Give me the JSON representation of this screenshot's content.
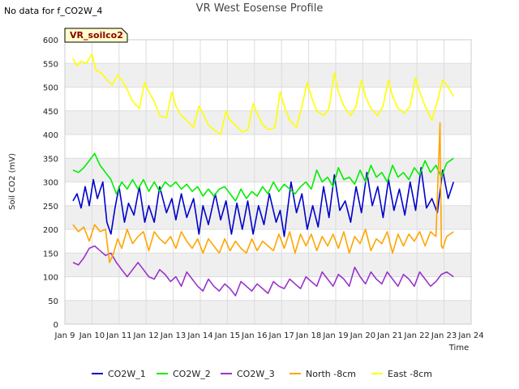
{
  "header": {
    "nodata": "No data for f_CO2W_4",
    "title": "VR West Eosense Profile"
  },
  "chart_data": {
    "type": "line",
    "title": "VR West Eosense Profile",
    "site_label": "VR_soilco2",
    "xlabel": "Time",
    "ylabel": "Soil CO2 (mV)",
    "xlim": [
      9,
      24
    ],
    "ylim": [
      0,
      600
    ],
    "x_ticks": [
      9,
      10,
      11,
      12,
      13,
      14,
      15,
      16,
      17,
      18,
      19,
      20,
      21,
      22,
      23,
      24
    ],
    "x_tick_labels": [
      "Jan 9",
      "Jan 10",
      "Jan 11",
      "Jan 12",
      "Jan 13",
      "Jan 14",
      "Jan 15",
      "Jan 16",
      "Jan 17",
      "Jan 18",
      "Jan 19",
      "Jan 20",
      "Jan 21",
      "Jan 22",
      "Jan 23",
      "Jan 24"
    ],
    "y_ticks": [
      0,
      50,
      100,
      150,
      200,
      250,
      300,
      350,
      400,
      450,
      500,
      550,
      600
    ],
    "grid": true,
    "legend_position": "bottom",
    "series": [
      {
        "name": "CO2W_1",
        "color": "#0000cc",
        "x": [
          9.3,
          9.45,
          9.6,
          9.75,
          9.9,
          10.05,
          10.2,
          10.4,
          10.55,
          10.7,
          10.85,
          11.0,
          11.2,
          11.35,
          11.55,
          11.75,
          11.95,
          12.1,
          12.3,
          12.5,
          12.75,
          12.95,
          13.1,
          13.3,
          13.5,
          13.75,
          13.95,
          14.1,
          14.3,
          14.55,
          14.75,
          14.95,
          15.15,
          15.35,
          15.55,
          15.75,
          15.95,
          16.15,
          16.35,
          16.55,
          16.8,
          16.95,
          17.1,
          17.35,
          17.55,
          17.75,
          17.95,
          18.15,
          18.35,
          18.55,
          18.75,
          18.95,
          19.15,
          19.35,
          19.55,
          19.75,
          19.95,
          20.15,
          20.35,
          20.55,
          20.75,
          20.95,
          21.15,
          21.35,
          21.55,
          21.75,
          21.95,
          22.15,
          22.35,
          22.55,
          22.75,
          22.95,
          23.15,
          23.35
        ],
        "y": [
          260,
          275,
          245,
          290,
          250,
          305,
          265,
          300,
          215,
          190,
          245,
          290,
          215,
          255,
          230,
          290,
          215,
          250,
          215,
          290,
          235,
          265,
          220,
          275,
          225,
          265,
          190,
          250,
          210,
          275,
          220,
          260,
          190,
          255,
          200,
          260,
          190,
          250,
          210,
          275,
          215,
          240,
          185,
          300,
          235,
          275,
          200,
          250,
          205,
          290,
          225,
          315,
          240,
          260,
          215,
          290,
          235,
          320,
          250,
          290,
          225,
          305,
          240,
          285,
          230,
          300,
          240,
          330,
          245,
          265,
          235,
          325,
          265,
          300
        ]
      },
      {
        "name": "CO2W_2",
        "color": "#00ee00",
        "x": [
          9.3,
          9.5,
          9.7,
          9.9,
          10.1,
          10.3,
          10.5,
          10.7,
          10.9,
          11.1,
          11.3,
          11.5,
          11.7,
          11.9,
          12.1,
          12.3,
          12.5,
          12.7,
          12.9,
          13.1,
          13.3,
          13.5,
          13.7,
          13.9,
          14.1,
          14.3,
          14.5,
          14.7,
          14.9,
          15.1,
          15.3,
          15.5,
          15.7,
          15.9,
          16.1,
          16.3,
          16.5,
          16.7,
          16.9,
          17.1,
          17.3,
          17.5,
          17.7,
          17.9,
          18.1,
          18.3,
          18.5,
          18.7,
          18.9,
          19.1,
          19.3,
          19.5,
          19.7,
          19.9,
          20.1,
          20.3,
          20.5,
          20.7,
          20.9,
          21.1,
          21.3,
          21.5,
          21.7,
          21.9,
          22.1,
          22.3,
          22.5,
          22.7,
          22.9,
          23.1,
          23.35
        ],
        "y": [
          325,
          320,
          330,
          345,
          360,
          335,
          320,
          305,
          275,
          300,
          285,
          305,
          285,
          305,
          280,
          300,
          280,
          300,
          290,
          300,
          285,
          295,
          280,
          290,
          270,
          285,
          270,
          285,
          290,
          275,
          260,
          285,
          265,
          280,
          270,
          290,
          275,
          300,
          280,
          295,
          285,
          275,
          290,
          300,
          285,
          325,
          300,
          310,
          290,
          330,
          305,
          310,
          295,
          325,
          300,
          335,
          310,
          320,
          300,
          335,
          310,
          320,
          305,
          330,
          315,
          345,
          320,
          335,
          310,
          340,
          350
        ]
      },
      {
        "name": "CO2W_3",
        "color": "#9933cc",
        "x": [
          9.3,
          9.5,
          9.7,
          9.9,
          10.1,
          10.3,
          10.5,
          10.7,
          10.9,
          11.1,
          11.3,
          11.5,
          11.7,
          11.9,
          12.1,
          12.3,
          12.5,
          12.7,
          12.9,
          13.1,
          13.3,
          13.5,
          13.7,
          13.9,
          14.1,
          14.3,
          14.5,
          14.7,
          14.9,
          15.1,
          15.3,
          15.5,
          15.7,
          15.9,
          16.1,
          16.3,
          16.5,
          16.7,
          16.9,
          17.1,
          17.3,
          17.5,
          17.7,
          17.9,
          18.1,
          18.3,
          18.5,
          18.7,
          18.9,
          19.1,
          19.3,
          19.5,
          19.7,
          19.9,
          20.1,
          20.3,
          20.5,
          20.7,
          20.9,
          21.1,
          21.3,
          21.5,
          21.7,
          21.9,
          22.1,
          22.3,
          22.5,
          22.7,
          22.9,
          23.1,
          23.35
        ],
        "y": [
          130,
          125,
          140,
          160,
          165,
          155,
          145,
          150,
          130,
          115,
          100,
          115,
          130,
          115,
          100,
          95,
          115,
          105,
          90,
          100,
          80,
          110,
          95,
          80,
          70,
          95,
          80,
          70,
          85,
          75,
          60,
          90,
          80,
          70,
          85,
          75,
          65,
          90,
          80,
          75,
          95,
          85,
          75,
          100,
          90,
          80,
          110,
          95,
          80,
          105,
          95,
          80,
          120,
          100,
          85,
          110,
          95,
          85,
          110,
          95,
          80,
          105,
          95,
          80,
          110,
          95,
          80,
          90,
          105,
          110,
          100
        ]
      },
      {
        "name": "North -8cm",
        "color": "#ffa500",
        "x": [
          9.3,
          9.5,
          9.7,
          9.9,
          10.1,
          10.3,
          10.5,
          10.65,
          10.8,
          10.95,
          11.1,
          11.3,
          11.5,
          11.7,
          11.9,
          12.1,
          12.3,
          12.5,
          12.7,
          12.9,
          13.1,
          13.3,
          13.5,
          13.7,
          13.9,
          14.1,
          14.3,
          14.5,
          14.7,
          14.9,
          15.1,
          15.3,
          15.5,
          15.7,
          15.9,
          16.1,
          16.3,
          16.5,
          16.7,
          16.9,
          17.1,
          17.3,
          17.5,
          17.7,
          17.9,
          18.1,
          18.3,
          18.5,
          18.7,
          18.9,
          19.1,
          19.3,
          19.5,
          19.7,
          19.9,
          20.1,
          20.3,
          20.5,
          20.7,
          20.9,
          21.1,
          21.3,
          21.5,
          21.7,
          21.9,
          22.1,
          22.3,
          22.5,
          22.7,
          22.85,
          22.9,
          22.95,
          23.1,
          23.35
        ],
        "y": [
          210,
          195,
          205,
          175,
          210,
          195,
          200,
          130,
          150,
          180,
          160,
          200,
          170,
          185,
          195,
          155,
          195,
          180,
          170,
          185,
          160,
          195,
          175,
          160,
          180,
          150,
          180,
          165,
          150,
          180,
          155,
          175,
          160,
          150,
          180,
          155,
          175,
          165,
          155,
          190,
          160,
          195,
          150,
          190,
          165,
          190,
          155,
          185,
          165,
          190,
          160,
          195,
          150,
          185,
          170,
          200,
          155,
          180,
          170,
          195,
          150,
          190,
          165,
          190,
          175,
          195,
          165,
          195,
          185,
          425,
          165,
          160,
          185,
          195
        ]
      },
      {
        "name": "East -8cm",
        "color": "#ffff00",
        "x": [
          9.3,
          9.45,
          9.6,
          9.8,
          10.0,
          10.15,
          10.35,
          10.55,
          10.75,
          10.95,
          11.1,
          11.3,
          11.5,
          11.75,
          11.95,
          12.1,
          12.3,
          12.5,
          12.75,
          12.95,
          13.1,
          13.3,
          13.5,
          13.75,
          13.95,
          14.1,
          14.3,
          14.5,
          14.75,
          14.95,
          15.1,
          15.3,
          15.55,
          15.75,
          15.95,
          16.1,
          16.3,
          16.55,
          16.75,
          16.95,
          17.1,
          17.3,
          17.55,
          17.75,
          17.95,
          18.1,
          18.3,
          18.55,
          18.75,
          18.95,
          19.1,
          19.3,
          19.55,
          19.75,
          19.95,
          20.1,
          20.3,
          20.55,
          20.75,
          20.95,
          21.1,
          21.3,
          21.55,
          21.75,
          21.95,
          22.1,
          22.3,
          22.55,
          22.75,
          22.95,
          23.1,
          23.35
        ],
        "y": [
          560,
          545,
          555,
          550,
          570,
          535,
          530,
          515,
          505,
          525,
          515,
          495,
          470,
          455,
          510,
          490,
          470,
          440,
          435,
          490,
          460,
          440,
          430,
          415,
          460,
          445,
          420,
          410,
          400,
          450,
          430,
          420,
          405,
          410,
          465,
          445,
          420,
          410,
          415,
          490,
          460,
          430,
          415,
          460,
          510,
          480,
          450,
          440,
          455,
          530,
          490,
          460,
          440,
          460,
          515,
          480,
          455,
          440,
          460,
          515,
          480,
          455,
          445,
          460,
          520,
          490,
          460,
          430,
          470,
          515,
          505,
          480
        ]
      }
    ]
  }
}
